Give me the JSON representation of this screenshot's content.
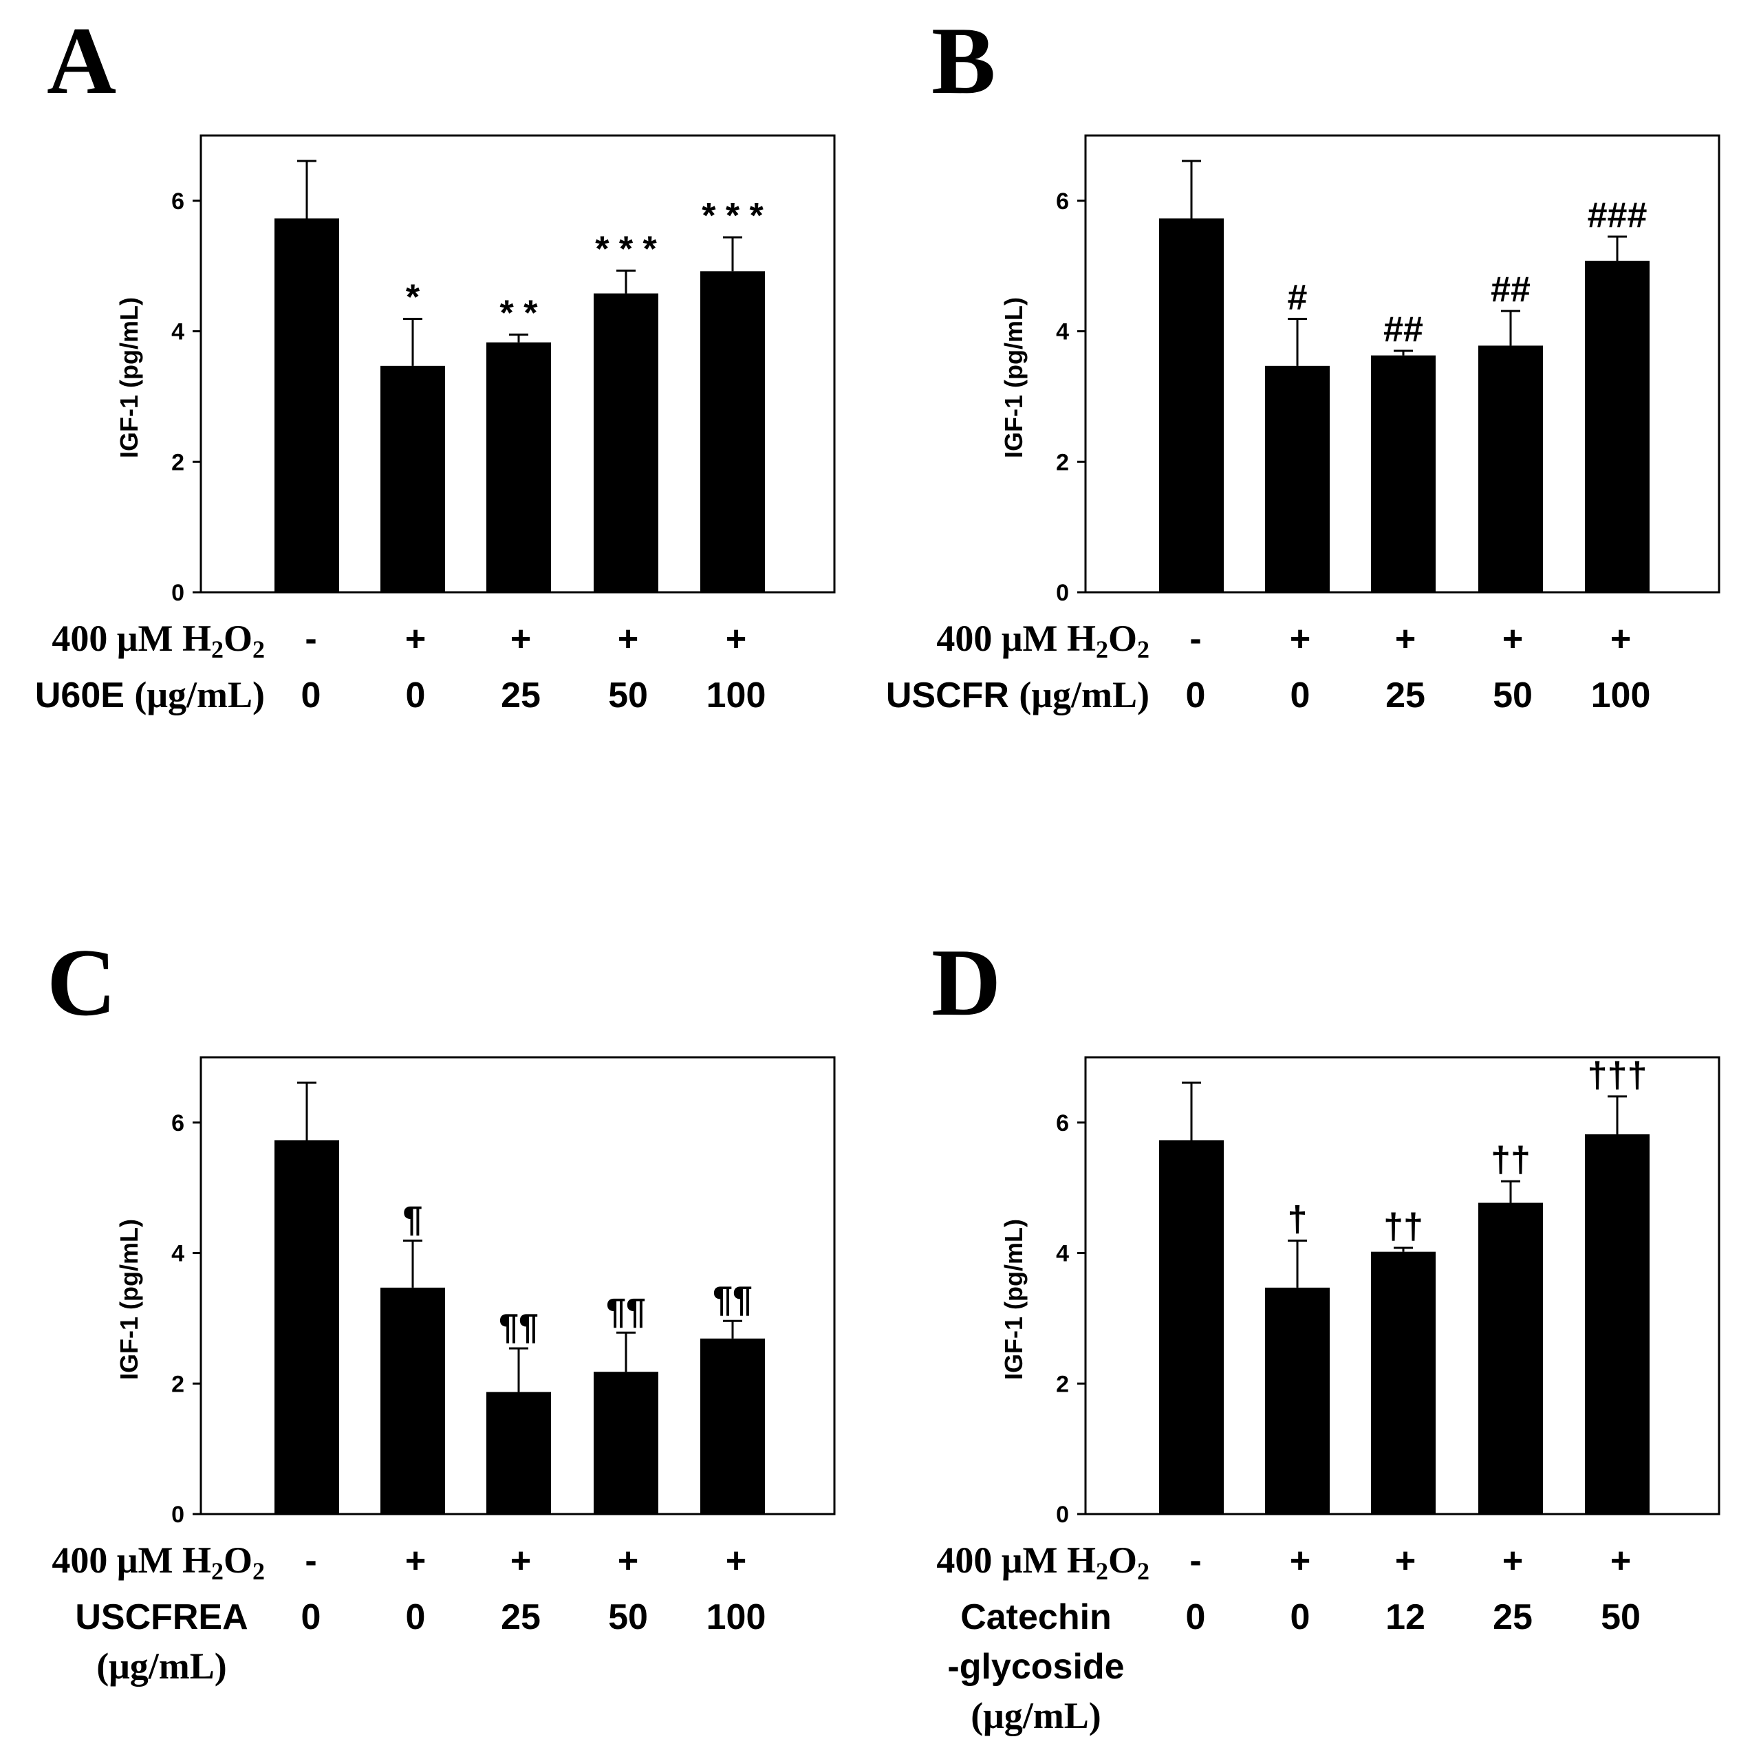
{
  "colors": {
    "bar": "#000000",
    "background": "#ffffff",
    "axis": "#000000"
  },
  "row_labels": {
    "h2o2": {
      "prefix": "400 μM H",
      "sub1": "2",
      "mid": "O",
      "sub2": "2"
    }
  },
  "chart_data": [
    {
      "id": "A",
      "panel_letter": "A",
      "type": "bar",
      "ylabel": "IGF-1 (pg/mL)",
      "ylim": [
        0,
        7
      ],
      "yticks": [
        "0",
        "2",
        "4",
        "6"
      ],
      "h2o2_values": [
        "-",
        "+",
        "+",
        "+",
        "+"
      ],
      "dose_label_lines": [
        "U60E (μg/mL)"
      ],
      "dose_values": [
        "0",
        "0",
        "25",
        "50",
        "100"
      ],
      "values": [
        5.73,
        3.47,
        3.83,
        4.58,
        4.92
      ],
      "errors": [
        0.88,
        0.72,
        0.12,
        0.35,
        0.52
      ],
      "significance": [
        "",
        "*",
        "* *",
        "* * *",
        "* * *"
      ]
    },
    {
      "id": "B",
      "panel_letter": "B",
      "type": "bar",
      "ylabel": "IGF-1 (pg/mL)",
      "ylim": [
        0,
        7
      ],
      "yticks": [
        "0",
        "2",
        "4",
        "6"
      ],
      "h2o2_values": [
        "-",
        "+",
        "+",
        "+",
        "+"
      ],
      "dose_label_lines": [
        "USCFR (μg/mL)"
      ],
      "dose_values": [
        "0",
        "0",
        "25",
        "50",
        "100"
      ],
      "values": [
        5.73,
        3.47,
        3.63,
        3.78,
        5.08
      ],
      "errors": [
        0.88,
        0.72,
        0.07,
        0.53,
        0.37
      ],
      "significance": [
        "",
        "#",
        "##",
        "##",
        "###"
      ]
    },
    {
      "id": "C",
      "panel_letter": "C",
      "type": "bar",
      "ylabel": "IGF-1 (pg/mL)",
      "ylim": [
        0,
        7
      ],
      "yticks": [
        "0",
        "2",
        "4",
        "6"
      ],
      "h2o2_values": [
        "-",
        "+",
        "+",
        "+",
        "+"
      ],
      "dose_label_lines": [
        "USCFREA",
        "(μg/mL)"
      ],
      "dose_values": [
        "0",
        "0",
        "25",
        "50",
        "100"
      ],
      "values": [
        5.73,
        3.47,
        1.87,
        2.18,
        2.69
      ],
      "errors": [
        0.88,
        0.72,
        0.67,
        0.6,
        0.27
      ],
      "significance": [
        "",
        "¶",
        "¶¶",
        "¶¶",
        "¶¶"
      ]
    },
    {
      "id": "D",
      "panel_letter": "D",
      "type": "bar",
      "ylabel": "IGF-1 (pg/mL)",
      "ylim": [
        0,
        7
      ],
      "yticks": [
        "0",
        "2",
        "4",
        "6"
      ],
      "h2o2_values": [
        "-",
        "+",
        "+",
        "+",
        "+"
      ],
      "dose_label_lines": [
        "Catechin",
        "-glycoside",
        "(μg/mL)"
      ],
      "dose_values": [
        "0",
        "0",
        "12",
        "25",
        "50"
      ],
      "values": [
        5.73,
        3.47,
        4.02,
        4.77,
        5.82
      ],
      "errors": [
        0.88,
        0.72,
        0.06,
        0.33,
        0.58
      ],
      "significance": [
        "",
        "†",
        "††",
        "††",
        "†††"
      ]
    }
  ]
}
